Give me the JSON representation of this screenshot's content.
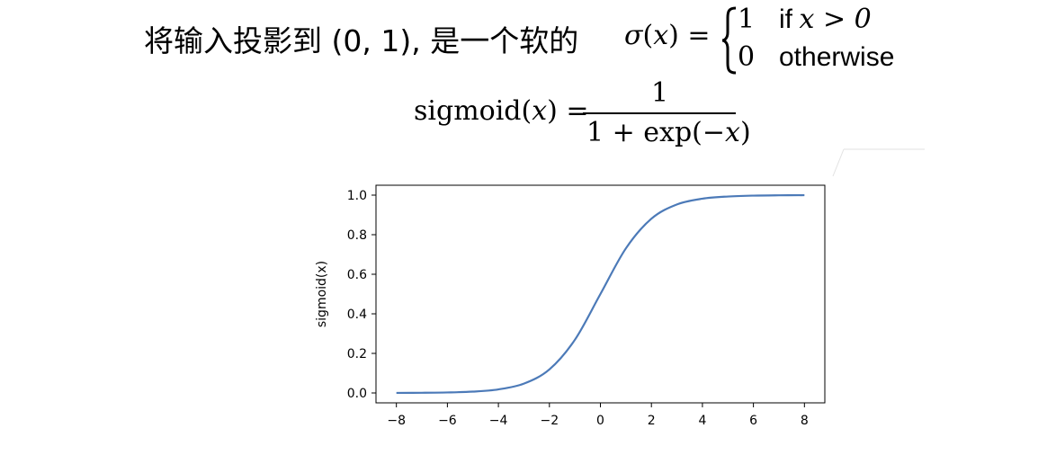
{
  "header": {
    "text": "将输入投影到 (0, 1), 是一个软的"
  },
  "step_function": {
    "lhs": "σ(x) =",
    "case1_value": "1",
    "case1_cond_word": "if",
    "case1_cond_expr": "x > 0",
    "case2_value": "0",
    "case2_cond": "otherwise"
  },
  "sigmoid_formula": {
    "lhs": "sigmoid(x) =",
    "numerator": "1",
    "denominator": "1 + exp(−x)"
  },
  "colors": {
    "curve": "#4C7AB8",
    "axes": "#000000"
  },
  "chart_data": {
    "type": "line",
    "title": "",
    "xlabel": "",
    "ylabel": "sigmoid(x)",
    "xlim": [
      -8.8,
      8.8
    ],
    "ylim": [
      -0.05,
      1.05
    ],
    "x_ticks": [
      -8,
      -6,
      -4,
      -2,
      0,
      2,
      4,
      6,
      8
    ],
    "x_tick_labels": [
      "−8",
      "−6",
      "−4",
      "−2",
      "0",
      "2",
      "4",
      "6",
      "8"
    ],
    "y_ticks": [
      0.0,
      0.2,
      0.4,
      0.6,
      0.8,
      1.0
    ],
    "y_tick_labels": [
      "0.0",
      "0.2",
      "0.4",
      "0.6",
      "0.8",
      "1.0"
    ],
    "grid": false,
    "series": [
      {
        "x": [
          -8,
          -7,
          -6,
          -5,
          -4,
          -3,
          -2,
          -1,
          0,
          1,
          2,
          3,
          4,
          5,
          6,
          7,
          8
        ],
        "y": [
          0.0003,
          0.0009,
          0.0025,
          0.0067,
          0.018,
          0.047,
          0.119,
          0.269,
          0.5,
          0.731,
          0.881,
          0.953,
          0.982,
          0.993,
          0.9975,
          0.9991,
          0.9997
        ]
      }
    ]
  }
}
